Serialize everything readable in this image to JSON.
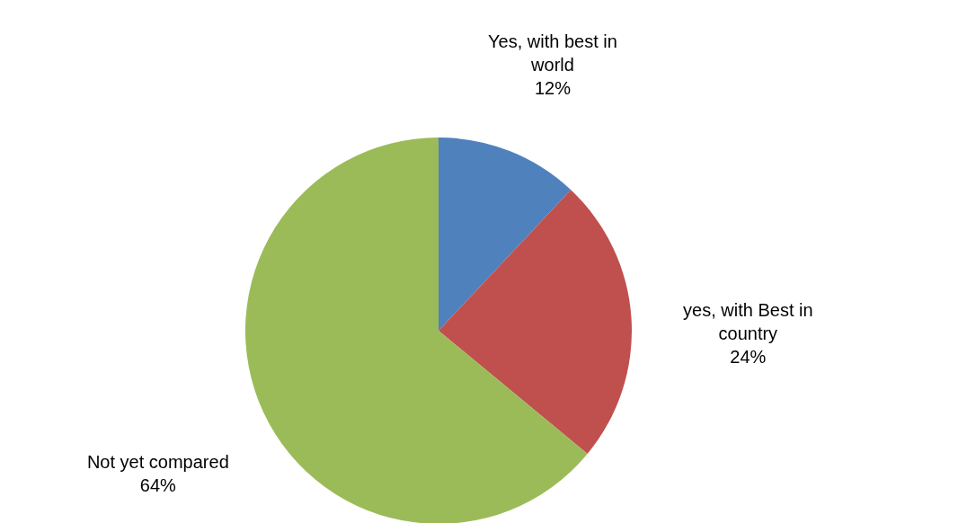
{
  "chart_data": {
    "type": "pie",
    "categories": [
      "Yes, with best in world",
      "yes, with Best in country",
      "Not yet compared"
    ],
    "values": [
      12,
      24,
      64
    ],
    "value_labels": [
      "12%",
      "24%",
      "64%"
    ],
    "colors": [
      "#4f81bd",
      "#c0504d",
      "#9bbb59"
    ],
    "legend": false
  }
}
